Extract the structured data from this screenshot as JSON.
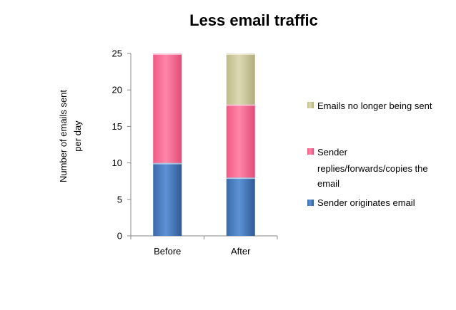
{
  "chart_data": {
    "type": "bar",
    "stacked": true,
    "title": "Less email traffic",
    "xlabel": "",
    "ylabel": "Number of emails sent per day",
    "ylabel_lines": [
      "Number of emails sent",
      "per day"
    ],
    "categories": [
      "Before",
      "After"
    ],
    "ylim": [
      0,
      25
    ],
    "yticks": [
      0,
      5,
      10,
      15,
      20,
      25
    ],
    "grid": false,
    "legend_position": "right",
    "series": [
      {
        "name": "Sender originates email",
        "values": [
          10,
          8
        ],
        "color": "#4a7ebb"
      },
      {
        "name": "Sender replies/forwards/copies the email",
        "name_lines": [
          "Sender",
          "replies/forwards/copies the",
          "email"
        ],
        "values": [
          15,
          10
        ],
        "color": "#ff6f96"
      },
      {
        "name": "Emails no longer being sent",
        "values": [
          0,
          7
        ],
        "color": "#cfcba1"
      }
    ]
  }
}
